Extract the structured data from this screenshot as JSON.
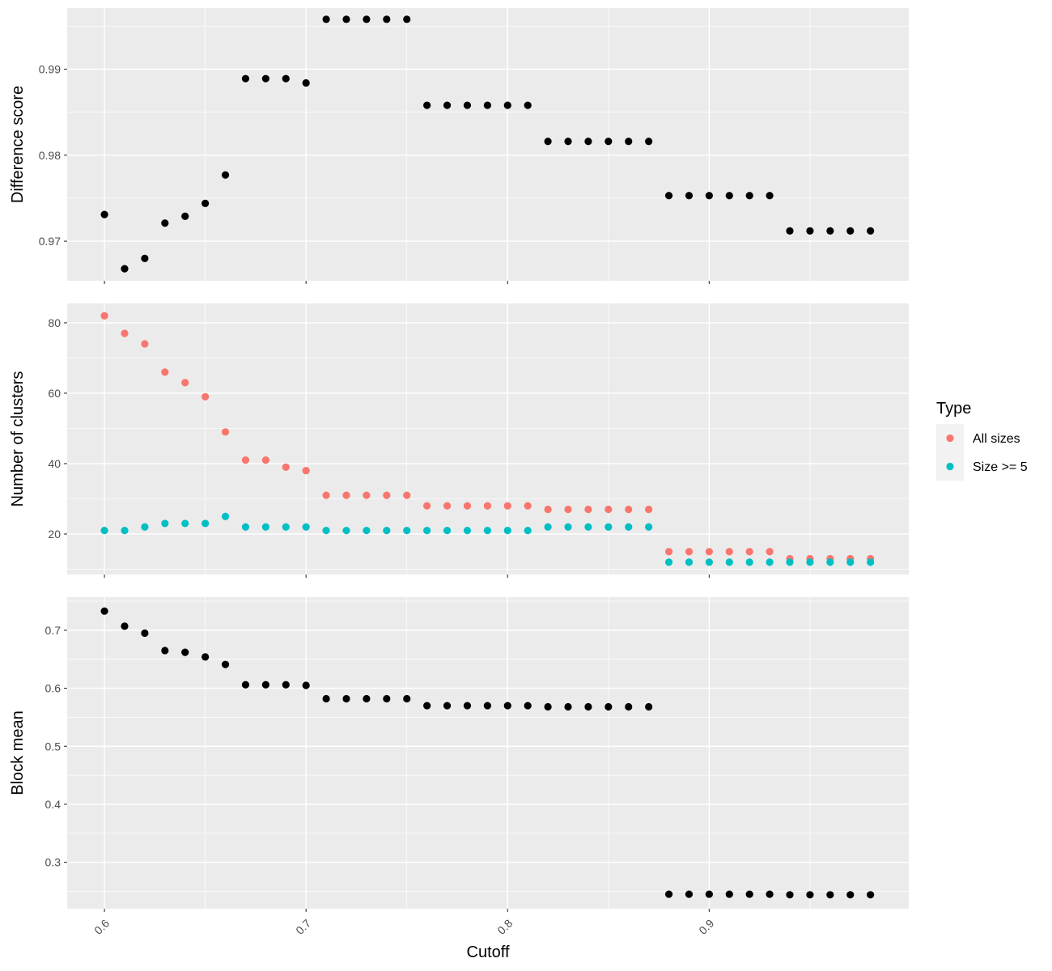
{
  "figure": {
    "xlabel": "Cutoff",
    "legend": {
      "title": "Type",
      "placement": "right",
      "entries": [
        {
          "label": "All sizes",
          "color": "#F8766D"
        },
        {
          "label": "Size >= 5",
          "color": "#00BFC4"
        }
      ]
    },
    "panel_bg": "#EBEBEB",
    "grid_color": "#FFFFFF",
    "point_color": "#000000"
  },
  "chart_data": [
    {
      "type": "scatter",
      "ylabel": "Difference score",
      "xlim": [
        0.5815,
        0.999
      ],
      "ylim": [
        0.9654,
        0.9971
      ],
      "x_ticks": [
        0.6,
        0.7,
        0.8,
        0.9
      ],
      "x_tick_labels": [],
      "y_ticks": [
        0.97,
        0.98,
        0.99
      ],
      "y_tick_labels": [
        "0.97",
        "0.98",
        "0.99"
      ],
      "x": [
        0.6,
        0.61,
        0.62,
        0.63,
        0.64,
        0.65,
        0.66,
        0.67,
        0.68,
        0.69,
        0.7,
        0.71,
        0.72,
        0.73,
        0.74,
        0.75,
        0.76,
        0.77,
        0.78,
        0.79,
        0.8,
        0.81,
        0.82,
        0.83,
        0.84,
        0.85,
        0.86,
        0.87,
        0.88,
        0.89,
        0.9,
        0.91,
        0.92,
        0.93,
        0.94,
        0.95,
        0.96,
        0.97,
        0.98
      ],
      "series": [
        {
          "values": [
            0.9731,
            0.9668,
            0.968,
            0.9721,
            0.9729,
            0.9744,
            0.9777,
            0.9889,
            0.9889,
            0.9889,
            0.9884,
            0.9958,
            0.9958,
            0.9958,
            0.9958,
            0.9958,
            0.9858,
            0.9858,
            0.9858,
            0.9858,
            0.9858,
            0.9858,
            0.9816,
            0.9816,
            0.9816,
            0.9816,
            0.9816,
            0.9816,
            0.9753,
            0.9753,
            0.9753,
            0.9753,
            0.9753,
            0.9753,
            0.9712,
            0.9712,
            0.9712,
            0.9712,
            0.9712
          ]
        }
      ]
    },
    {
      "type": "scatter",
      "ylabel": "Number of clusters",
      "xlim": [
        0.5815,
        0.999
      ],
      "ylim": [
        8.5,
        85.5
      ],
      "x_ticks": [
        0.6,
        0.7,
        0.8,
        0.9
      ],
      "x_tick_labels": [],
      "y_ticks": [
        20,
        40,
        60,
        80
      ],
      "y_tick_labels": [
        "20",
        "40",
        "60",
        "80"
      ],
      "x": [
        0.6,
        0.61,
        0.62,
        0.63,
        0.64,
        0.65,
        0.66,
        0.67,
        0.68,
        0.69,
        0.7,
        0.71,
        0.72,
        0.73,
        0.74,
        0.75,
        0.76,
        0.77,
        0.78,
        0.79,
        0.8,
        0.81,
        0.82,
        0.83,
        0.84,
        0.85,
        0.86,
        0.87,
        0.88,
        0.89,
        0.9,
        0.91,
        0.92,
        0.93,
        0.94,
        0.95,
        0.96,
        0.97,
        0.98
      ],
      "series": [
        {
          "name": "All sizes",
          "values": [
            82,
            77,
            74,
            66,
            63,
            59,
            49,
            41,
            41,
            39,
            38,
            31,
            31,
            31,
            31,
            31,
            28,
            28,
            28,
            28,
            28,
            28,
            27,
            27,
            27,
            27,
            27,
            27,
            15,
            15,
            15,
            15,
            15,
            15,
            13,
            13,
            13,
            13,
            13
          ]
        },
        {
          "name": "Size >= 5",
          "values": [
            21,
            21,
            22,
            23,
            23,
            23,
            25,
            22,
            22,
            22,
            22,
            21,
            21,
            21,
            21,
            21,
            21,
            21,
            21,
            21,
            21,
            21,
            22,
            22,
            22,
            22,
            22,
            22,
            12,
            12,
            12,
            12,
            12,
            12,
            12,
            12,
            12,
            12,
            12
          ]
        }
      ]
    },
    {
      "type": "scatter",
      "ylabel": "Block mean",
      "xlim": [
        0.5815,
        0.999
      ],
      "ylim": [
        0.22,
        0.757
      ],
      "x_ticks": [
        0.6,
        0.7,
        0.8,
        0.9
      ],
      "x_tick_labels": [
        "0.6",
        "0.7",
        "0.8",
        "0.9"
      ],
      "y_ticks": [
        0.3,
        0.4,
        0.5,
        0.6,
        0.7
      ],
      "y_tick_labels": [
        "0.3",
        "0.4",
        "0.5",
        "0.6",
        "0.7"
      ],
      "x": [
        0.6,
        0.61,
        0.62,
        0.63,
        0.64,
        0.65,
        0.66,
        0.67,
        0.68,
        0.69,
        0.7,
        0.71,
        0.72,
        0.73,
        0.74,
        0.75,
        0.76,
        0.77,
        0.78,
        0.79,
        0.8,
        0.81,
        0.82,
        0.83,
        0.84,
        0.85,
        0.86,
        0.87,
        0.88,
        0.89,
        0.9,
        0.91,
        0.92,
        0.93,
        0.94,
        0.95,
        0.96,
        0.97,
        0.98
      ],
      "series": [
        {
          "values": [
            0.733,
            0.707,
            0.695,
            0.665,
            0.662,
            0.654,
            0.641,
            0.606,
            0.606,
            0.606,
            0.605,
            0.582,
            0.582,
            0.582,
            0.582,
            0.582,
            0.57,
            0.57,
            0.57,
            0.57,
            0.57,
            0.57,
            0.568,
            0.568,
            0.568,
            0.568,
            0.568,
            0.568,
            0.245,
            0.245,
            0.245,
            0.245,
            0.245,
            0.245,
            0.244,
            0.244,
            0.244,
            0.244,
            0.244
          ]
        }
      ]
    }
  ]
}
